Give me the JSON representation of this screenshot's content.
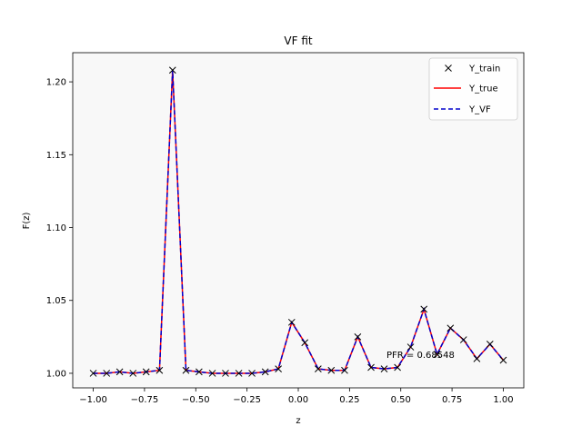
{
  "chart_data": {
    "type": "line",
    "title": "VF fit",
    "xlabel": "z",
    "ylabel": "F(z)",
    "xlim": [
      -1.1,
      1.1
    ],
    "ylim": [
      0.99,
      1.22
    ],
    "xticks": [
      -1.0,
      -0.75,
      -0.5,
      -0.25,
      0.0,
      0.25,
      0.5,
      0.75,
      1.0
    ],
    "xtick_labels": [
      "−1.00",
      "−0.75",
      "−0.50",
      "−0.25",
      "0.00",
      "0.25",
      "0.50",
      "0.75",
      "1.00"
    ],
    "yticks": [
      1.0,
      1.05,
      1.1,
      1.15,
      1.2
    ],
    "ytick_labels": [
      "1.00",
      "1.05",
      "1.10",
      "1.15",
      "1.20"
    ],
    "grid": false,
    "legend_position": "top-right",
    "annotation": "PFR = 0.68548",
    "series": [
      {
        "name": "Y_train",
        "style": "markers",
        "marker": "x",
        "color": "#000000"
      },
      {
        "name": "Y_true",
        "style": "solid",
        "color": "#ff0000"
      },
      {
        "name": "Y_VF",
        "style": "dashed",
        "color": "#0000cc"
      }
    ],
    "x": [
      -1.0,
      -0.935,
      -0.871,
      -0.806,
      -0.742,
      -0.677,
      -0.613,
      -0.548,
      -0.484,
      -0.419,
      -0.355,
      -0.29,
      -0.226,
      -0.161,
      -0.097,
      -0.032,
      0.032,
      0.097,
      0.161,
      0.226,
      0.29,
      0.355,
      0.419,
      0.484,
      0.548,
      0.613,
      0.677,
      0.742,
      0.806,
      0.871,
      0.935,
      1.0
    ],
    "y": [
      1.0,
      1.0,
      1.001,
      1.0,
      1.001,
      1.002,
      1.208,
      1.002,
      1.001,
      1.0,
      1.0,
      1.0,
      1.0,
      1.001,
      1.003,
      1.035,
      1.021,
      1.003,
      1.002,
      1.002,
      1.025,
      1.004,
      1.003,
      1.004,
      1.018,
      1.044,
      1.013,
      1.031,
      1.023,
      1.01,
      1.02,
      1.009
    ]
  }
}
